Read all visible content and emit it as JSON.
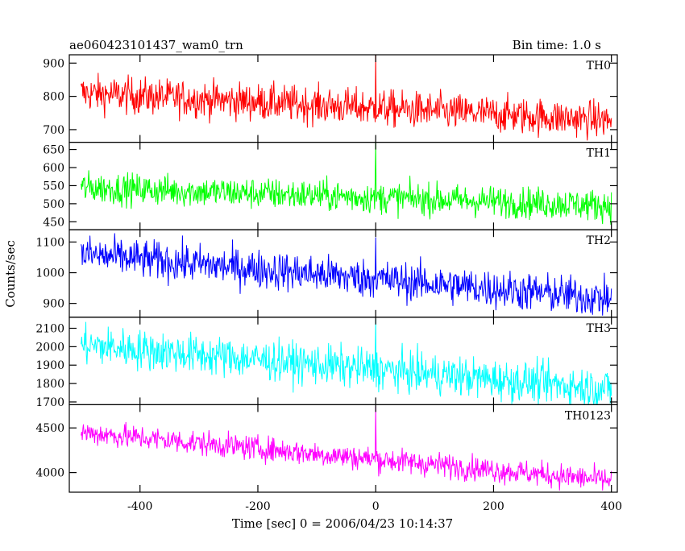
{
  "header": {
    "title": "ae060423101437_wam0_trn",
    "bin_time": "Bin time: 1.0 s"
  },
  "axes": {
    "ylabel": "Counts/sec",
    "xlabel": "Time [sec] 0 = 2006/04/23 10:14:37"
  },
  "chart_data": {
    "type": "line",
    "title": "ae060423101437_wam0_trn",
    "xlabel": "Time [sec] 0 = 2006/04/23 10:14:37",
    "ylabel": "Counts/sec",
    "xlim": [
      -520,
      410
    ],
    "x_ticks": [
      -400,
      -200,
      0,
      200,
      400
    ],
    "x_range": [
      -500,
      400
    ],
    "bin_time_s": 1.0,
    "panels": [
      {
        "name": "TH0",
        "color": "#ff0000",
        "ylim": [
          662,
          925
        ],
        "yticks": [
          700,
          800,
          900
        ],
        "trend_start": 810,
        "trend_end": 728,
        "noise": 28,
        "spike_x": 0,
        "spike_peak": 925
      },
      {
        "name": "TH1",
        "color": "#00ff00",
        "ylim": [
          428,
          670
        ],
        "yticks": [
          450,
          500,
          550,
          600,
          650
        ],
        "trend_start": 545,
        "trend_end": 495,
        "noise": 22,
        "spike_x": 0,
        "spike_peak": 670
      },
      {
        "name": "TH2",
        "color": "#0000ff",
        "ylim": [
          855,
          1140
        ],
        "yticks": [
          900,
          1000,
          1100
        ],
        "trend_start": 1060,
        "trend_end": 915,
        "noise": 32,
        "spike_x": 0,
        "spike_peak": 1115
      },
      {
        "name": "TH3",
        "color": "#00ffff",
        "ylim": [
          1685,
          2160
        ],
        "yticks": [
          1700,
          1800,
          1900,
          2000,
          2100
        ],
        "trend_start": 2010,
        "trend_end": 1770,
        "noise": 55,
        "spike_x": 0,
        "spike_peak": 2150
      },
      {
        "name": "TH0123",
        "color": "#ff00ff",
        "ylim": [
          3780,
          4760
        ],
        "yticks": [
          4000,
          4500
        ],
        "trend_start": 4450,
        "trend_end": 3910,
        "noise": 70,
        "spike_x": 0,
        "spike_peak": 4740
      }
    ]
  }
}
